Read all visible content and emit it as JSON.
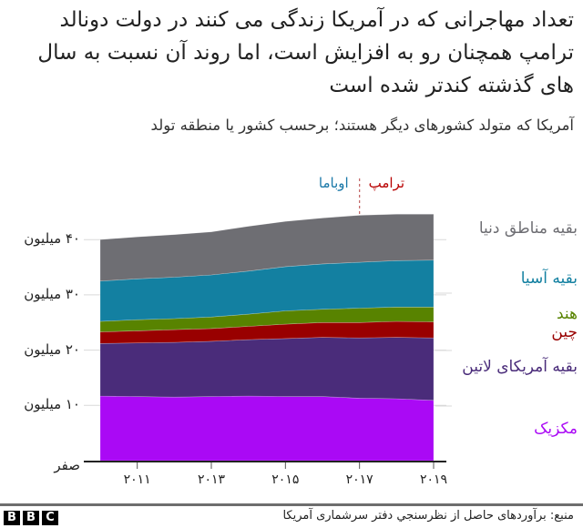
{
  "title": "تعداد مهاجرانی که در آمریکا زندگی می کنند در دولت دونالد ترامپ همچنان رو به افزایش است، اما روند آن نسبت به سال های گذشته کندتر شده است",
  "subtitle": "آمریکا که متولد کشورهای دیگر هستند؛ برحسب کشور یا منطقه تولد",
  "annotations": {
    "obama": "اوباما",
    "trump": "ترامپ",
    "obama_color": "#1a78a8",
    "trump_color": "#b80000"
  },
  "y_axis": {
    "ticks": [
      {
        "value": 0,
        "label": "صفر"
      },
      {
        "value": 10,
        "label": "۱۰ میلیون"
      },
      {
        "value": 20,
        "label": "۲۰ میلیون"
      },
      {
        "value": 30,
        "label": "۳۰ میلیون"
      },
      {
        "value": 40,
        "label": "۴۰ میلیون"
      }
    ]
  },
  "x_axis": {
    "ticks": [
      {
        "value": 2011,
        "label": "۲۰۱۱"
      },
      {
        "value": 2013,
        "label": "۲۰۱۳"
      },
      {
        "value": 2015,
        "label": "۲۰۱۵"
      },
      {
        "value": 2017,
        "label": "۲۰۱۷"
      },
      {
        "value": 2019,
        "label": "۲۰۱۹"
      }
    ]
  },
  "legend": [
    {
      "label": "بقیه مناطق دنیا",
      "color": "#6e6e73",
      "text_color": "#6e6e73"
    },
    {
      "label": "بقیه آسیا",
      "color": "#1380a1",
      "text_color": "#1380a1"
    },
    {
      "label": "هند",
      "color": "#588300",
      "text_color": "#588300"
    },
    {
      "label": "چین",
      "color": "#990000",
      "text_color": "#990000"
    },
    {
      "label": "بقیه آمریکای لاتین",
      "color": "#4a2c7a",
      "text_color": "#4a2c7a"
    },
    {
      "label": "مکزیک",
      "color": "#aa09f5",
      "text_color": "#aa09f5"
    }
  ],
  "chart_data": {
    "type": "area",
    "stacked": true,
    "title": "تعداد مهاجرانی که در آمریکا زندگی می کنند در دولت دونالد ترامپ همچنان رو به افزایش است، اما روند آن نسبت به سال های گذشته کندتر شده است",
    "subtitle": "آمریکا که متولد کشورهای دیگر هستند؛ برحسب کشور یا منطقه تولد",
    "xlabel": "",
    "ylabel": "",
    "x": [
      2010,
      2011,
      2012,
      2013,
      2014,
      2015,
      2016,
      2017,
      2018,
      2019
    ],
    "ylim": [
      0,
      45
    ],
    "grid": true,
    "legend_position": "right (inline labels)",
    "series": [
      {
        "name": "مکزیک",
        "values": [
          11.7,
          11.6,
          11.5,
          11.6,
          11.7,
          11.6,
          11.6,
          11.3,
          11.2,
          10.9
        ]
      },
      {
        "name": "بقیه آمریکای لاتین",
        "values": [
          9.5,
          9.7,
          9.9,
          10.0,
          10.2,
          10.5,
          10.7,
          10.9,
          11.1,
          11.3
        ]
      },
      {
        "name": "چین",
        "values": [
          2.1,
          2.2,
          2.3,
          2.3,
          2.4,
          2.6,
          2.7,
          2.8,
          2.9,
          2.9
        ]
      },
      {
        "name": "هند",
        "values": [
          1.9,
          2.0,
          2.0,
          2.1,
          2.2,
          2.4,
          2.4,
          2.6,
          2.6,
          2.7
        ]
      },
      {
        "name": "بقیه آسیا",
        "values": [
          7.3,
          7.4,
          7.5,
          7.6,
          7.8,
          8.0,
          8.2,
          8.3,
          8.4,
          8.5
        ]
      },
      {
        "name": "بقیه مناطق دنیا",
        "values": [
          7.5,
          7.6,
          7.7,
          7.8,
          8.1,
          8.2,
          8.3,
          8.5,
          8.4,
          8.3
        ]
      }
    ],
    "annotations": [
      {
        "text": "اوباما",
        "x_range": [
          2010,
          2017
        ]
      },
      {
        "text": "ترامپ",
        "x_range": [
          2017,
          2019
        ],
        "marker": "dashed vertical line at 2017"
      }
    ]
  },
  "footer": {
    "source": "منبع:  برآوردهای حاصل از نظرسنجي دفتر سرشماری آمریکا",
    "logo": [
      "B",
      "B",
      "C"
    ]
  }
}
